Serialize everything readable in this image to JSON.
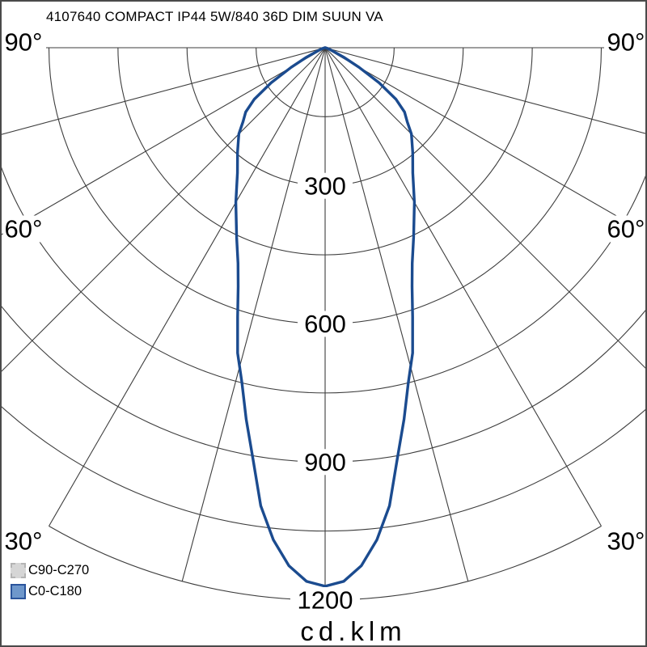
{
  "window": {
    "title_text": "4107640 COMPACT IP44 5W/840 36D DIM SUUN VA"
  },
  "colors": {
    "background": "#ffffff",
    "frame": "#4a4a4a",
    "grid": "#3d3d3d",
    "text": "#000000",
    "curve_c0": "#1b4b8f",
    "legend_gray_fill": "#d6d6d6",
    "legend_gray_border": "#b4b4b4",
    "legend_blue_fill": "#6e97cb",
    "legend_blue_border": "#2a549c"
  },
  "legend": {
    "items": [
      {
        "label": "C90-C270",
        "swatch": "gray"
      },
      {
        "label": "C0-C180",
        "swatch": "blue"
      }
    ]
  },
  "axis": {
    "unit_label": "cd.klm"
  },
  "chart_data": {
    "type": "polar_intensity_diagram",
    "title": "4107640 COMPACT IP44 5W/840 36D DIM SUUN VA",
    "unit": "cd/klm",
    "angle_unit": "deg",
    "radial_grid_step": 150,
    "radial_grid_max": 1200,
    "radial_tick_labels": [
      300,
      600,
      900,
      1200
    ],
    "angle_grid_step_deg": 15,
    "angle_edge_labels_deg": [
      90,
      60,
      30
    ],
    "legend_entries": [
      "C90-C270",
      "C0-C180"
    ],
    "peak_intensity_cd_per_klm": 1170,
    "beam_angle_note": "36D narrow beam, curve symmetric about 0 deg",
    "series": [
      {
        "name": "C90-C270",
        "visible_curve": false,
        "note": "not visibly distinct; coincides with C0-C180"
      },
      {
        "name": "C0-C180",
        "symmetric": true,
        "angles_deg": [
          0,
          2,
          4,
          6,
          8,
          10,
          12,
          14,
          16,
          18,
          20,
          22,
          25,
          30,
          35,
          40,
          45,
          48,
          51,
          54,
          57,
          60,
          63,
          66,
          70,
          75,
          80,
          85,
          90
        ],
        "intensity_cd_per_klm": [
          1170,
          1160,
          1128,
          1075,
          1005,
          905,
          825,
          748,
          690,
          615,
          552,
          505,
          455,
          388,
          332,
          296,
          265,
          240,
          222,
          190,
          140,
          85,
          45,
          20,
          10,
          5,
          2,
          1,
          0
        ]
      }
    ]
  }
}
